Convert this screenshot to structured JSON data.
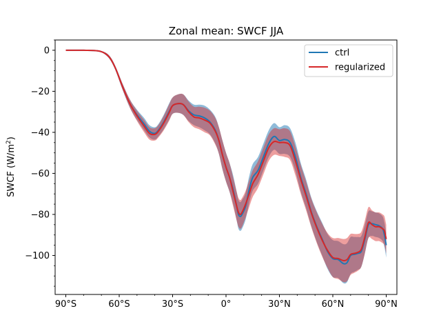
{
  "chart_data": {
    "type": "line",
    "title": "Zonal mean: SWCF JJA",
    "xlabel": "",
    "ylabel": "SWCF (W/m²)",
    "ylabel_parts": {
      "base": "SWCF (W/m",
      "sup": "2",
      "tail": ")"
    },
    "xlim": [
      -96,
      96
    ],
    "ylim": [
      -119,
      5
    ],
    "xticks": [
      {
        "value": -90,
        "label": "90°S"
      },
      {
        "value": -60,
        "label": "60°S"
      },
      {
        "value": -30,
        "label": "30°S"
      },
      {
        "value": 0,
        "label": "0°"
      },
      {
        "value": 30,
        "label": "30°N"
      },
      {
        "value": 60,
        "label": "60°N"
      },
      {
        "value": 90,
        "label": "90°N"
      }
    ],
    "yticks": [
      {
        "value": 0,
        "label": "0"
      },
      {
        "value": -20,
        "label": "−20"
      },
      {
        "value": -40,
        "label": "−40"
      },
      {
        "value": -60,
        "label": "−60"
      },
      {
        "value": -80,
        "label": "−80"
      },
      {
        "value": -100,
        "label": "−100"
      }
    ],
    "legend_position": "top-right",
    "series": [
      {
        "name": "ctrl",
        "color": "#1f77b4",
        "band_color": "#1f77b4",
        "x": [
          -90,
          -80,
          -72,
          -68,
          -65,
          -62,
          -58,
          -54,
          -50,
          -46,
          -43,
          -40,
          -38,
          -35,
          -32,
          -30,
          -27,
          -24,
          -21,
          -18,
          -15,
          -12,
          -9,
          -6,
          -4,
          -2,
          0,
          2,
          4,
          6,
          7,
          8,
          9,
          11,
          13,
          15,
          18,
          21,
          24,
          27,
          30,
          33,
          36,
          39,
          42,
          45,
          48,
          51,
          54,
          57,
          60,
          63,
          66,
          68,
          70,
          72,
          74,
          76,
          78,
          80,
          82,
          84,
          86,
          88,
          89,
          90
        ],
        "values": [
          0,
          0,
          -0.3,
          -1.5,
          -4,
          -9,
          -18,
          -26,
          -31.5,
          -36,
          -39.5,
          -40.5,
          -39,
          -35,
          -30,
          -27,
          -26,
          -26.5,
          -29.5,
          -31.5,
          -32,
          -33,
          -35,
          -39,
          -44,
          -51,
          -57,
          -62,
          -68,
          -76,
          -80,
          -81,
          -80,
          -76,
          -68,
          -62,
          -58.5,
          -52,
          -45.5,
          -42,
          -44,
          -43.5,
          -45,
          -52,
          -62,
          -70,
          -79,
          -86,
          -92,
          -98,
          -101.5,
          -102,
          -104,
          -103.5,
          -100,
          -99.5,
          -99,
          -98,
          -92,
          -85,
          -84.5,
          -85,
          -85.5,
          -87,
          -90,
          -95
        ],
        "band_half_width": [
          0,
          0,
          0,
          0.5,
          0.8,
          1,
          1.5,
          2,
          2.5,
          3,
          3,
          3,
          3,
          3.5,
          4,
          4,
          4.5,
          5,
          5,
          5,
          5.5,
          6,
          6,
          6.5,
          6.5,
          7,
          7,
          7,
          7,
          7,
          7,
          7,
          7,
          6.5,
          6.5,
          6.5,
          6.5,
          6.5,
          6.5,
          6.5,
          6.5,
          7,
          7,
          7,
          7,
          7,
          7,
          7.5,
          8,
          8.5,
          9,
          9,
          9.5,
          9.5,
          9,
          8.5,
          8,
          7.5,
          7,
          6.5,
          6,
          6,
          6,
          6,
          6,
          6
        ]
      },
      {
        "name": "regularized",
        "color": "#d62728",
        "band_color": "#d62728",
        "x": [
          -90,
          -80,
          -72,
          -68,
          -65,
          -62,
          -58,
          -54,
          -50,
          -46,
          -43,
          -40,
          -38,
          -35,
          -32,
          -30,
          -27,
          -24,
          -21,
          -18,
          -15,
          -12,
          -9,
          -6,
          -4,
          -2,
          0,
          2,
          4,
          6,
          7,
          8,
          9,
          11,
          13,
          15,
          18,
          21,
          24,
          27,
          30,
          33,
          36,
          39,
          42,
          45,
          48,
          51,
          54,
          57,
          60,
          63,
          66,
          68,
          70,
          72,
          74,
          76,
          78,
          80,
          82,
          84,
          86,
          88,
          89,
          90
        ],
        "values": [
          0,
          0,
          -0.3,
          -1.5,
          -4,
          -9,
          -18,
          -26,
          -32,
          -37,
          -40.5,
          -41,
          -39.5,
          -35.5,
          -30.5,
          -27,
          -26,
          -26.5,
          -30,
          -32.5,
          -33,
          -34,
          -35.5,
          -39.5,
          -44,
          -51,
          -57,
          -62,
          -69,
          -76,
          -79,
          -80,
          -79,
          -75,
          -70,
          -65,
          -60.5,
          -54,
          -47.5,
          -44.5,
          -45,
          -45,
          -46.5,
          -54,
          -63,
          -71,
          -79.5,
          -86.5,
          -92.5,
          -97.5,
          -101,
          -101.5,
          -102.5,
          -102,
          -99.5,
          -99,
          -98.5,
          -97,
          -91,
          -84,
          -85,
          -86,
          -86,
          -87,
          -88,
          -92
        ],
        "band_half_width": [
          0,
          0,
          0,
          0.5,
          0.8,
          1,
          1.5,
          2,
          2.5,
          3,
          3,
          3,
          3,
          3.5,
          4,
          4,
          4.5,
          5,
          5,
          5,
          5.5,
          6,
          6,
          6.5,
          6.5,
          7,
          7,
          7,
          7,
          7,
          7,
          7,
          7,
          6.5,
          6.5,
          6.5,
          6.5,
          6.5,
          6.5,
          6.5,
          6.5,
          7,
          7,
          7,
          7,
          7,
          7,
          7.5,
          8,
          8.5,
          9.5,
          10,
          10.5,
          10.5,
          10,
          9.5,
          9,
          8.5,
          8,
          7.5,
          7,
          7,
          7,
          7,
          7,
          7
        ]
      }
    ]
  }
}
